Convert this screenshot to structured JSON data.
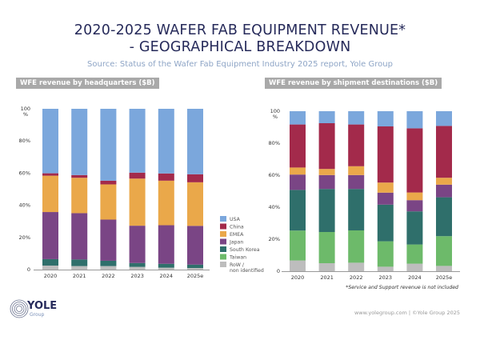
{
  "header": {
    "title_line1": "2020-2025 WAFER FAB EQUIPMENT REVENUE*",
    "title_line2": "- GEOGRAPHICAL BREAKDOWN",
    "subtitle": "Source: Status of the Wafer Fab Equipment Industry 2025 report, Yole Group"
  },
  "footer": {
    "footnote": "*Service and Support revenue is not included",
    "credit": "www.yolegroup.com | ©Yole Group 2025",
    "logo_text": "YOLE",
    "logo_sub": "Group"
  },
  "colors": {
    "USA": "#7ba7dc",
    "China": "#a32a4b",
    "EMEA": "#eaa84a",
    "Japan": "#7a4585",
    "South Korea": "#2f6f6b",
    "Taiwan": "#6dba6a",
    "RoW / non identified": "#bdbdbd"
  },
  "chart_data": [
    {
      "type": "bar",
      "stacked": true,
      "title": "WFE revenue by headquarters ($B)",
      "categories": [
        "2020",
        "2021",
        "2022",
        "2023",
        "2024",
        "2025e"
      ],
      "ylim": [
        0,
        100
      ],
      "yticks": [
        "0",
        "20%",
        "40%",
        "60%",
        "80%",
        "100 %"
      ],
      "legend": "right",
      "series": [
        {
          "name": "RoW / non identified",
          "values": [
            2.5,
            2.2,
            2.2,
            1.7,
            1.2,
            1.0
          ]
        },
        {
          "name": "Taiwan",
          "values": [
            0,
            0,
            0,
            0,
            0,
            0
          ]
        },
        {
          "name": "South Korea",
          "values": [
            4.0,
            4.1,
            3.3,
            2.4,
            2.4,
            2.1
          ]
        },
        {
          "name": "Japan",
          "values": [
            29.3,
            28.8,
            25.6,
            23.2,
            24.0,
            24.1
          ]
        },
        {
          "name": "EMEA",
          "values": [
            22.6,
            22.0,
            21.9,
            29.3,
            27.7,
            27.1
          ]
        },
        {
          "name": "China",
          "values": [
            1.5,
            1.7,
            2.3,
            3.7,
            4.5,
            5.0
          ]
        },
        {
          "name": "USA",
          "values": [
            40.1,
            41.2,
            44.7,
            39.7,
            40.2,
            40.7
          ]
        }
      ]
    },
    {
      "type": "bar",
      "stacked": true,
      "title": "WFE revenue by shipment destinations ($B)",
      "categories": [
        "2020",
        "2021",
        "2022",
        "2023",
        "2024",
        "2025e"
      ],
      "ylim": [
        0,
        100
      ],
      "yticks": [
        "0",
        "20%",
        "40%",
        "60%",
        "80%",
        "100 %"
      ],
      "series": [
        {
          "name": "RoW / non identified",
          "values": [
            6.7,
            5.0,
            5.3,
            2.8,
            4.7,
            3.3
          ]
        },
        {
          "name": "Taiwan",
          "values": [
            18.7,
            19.5,
            20.2,
            15.9,
            12.0,
            18.6
          ]
        },
        {
          "name": "South Korea",
          "values": [
            25.4,
            26.9,
            25.9,
            22.9,
            20.7,
            24.3
          ]
        },
        {
          "name": "Japan",
          "values": [
            9.6,
            8.7,
            8.7,
            7.5,
            7.0,
            7.9
          ]
        },
        {
          "name": "EMEA",
          "values": [
            4.4,
            3.8,
            5.5,
            6.3,
            4.8,
            4.3
          ]
        },
        {
          "name": "China",
          "values": [
            26.9,
            28.6,
            26.1,
            35.1,
            40.1,
            32.4
          ]
        },
        {
          "name": "USA",
          "values": [
            8.3,
            7.5,
            8.3,
            9.5,
            10.7,
            9.2
          ]
        }
      ]
    }
  ]
}
